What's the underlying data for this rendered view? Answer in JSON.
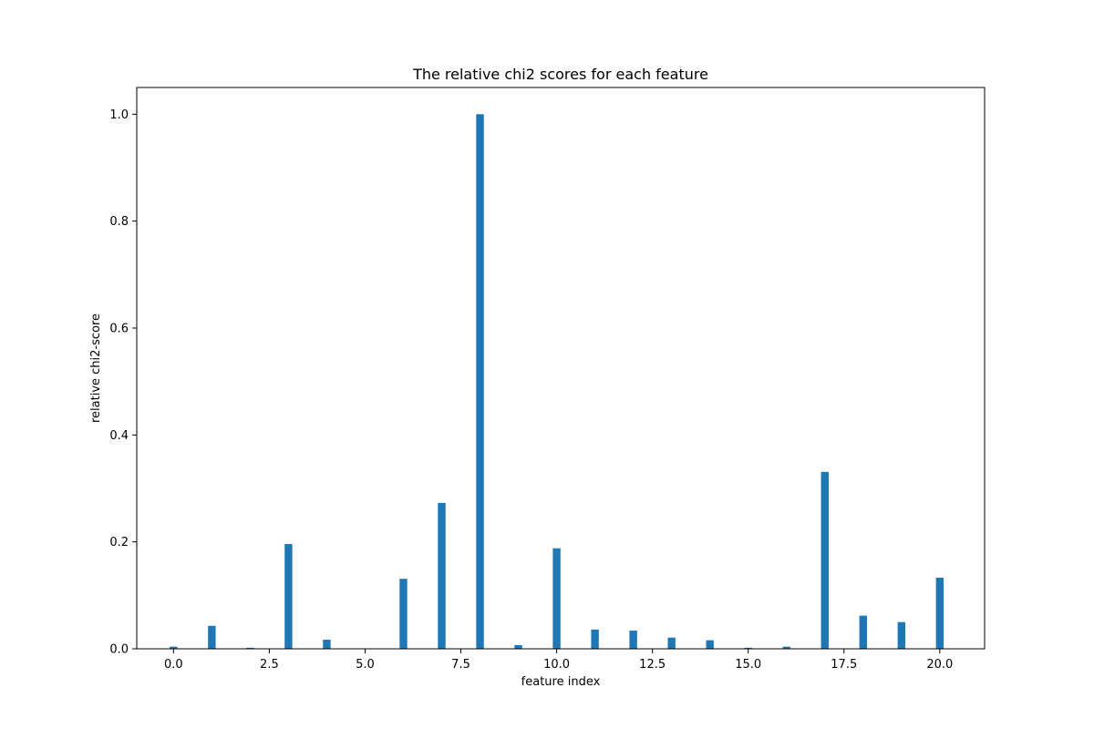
{
  "chart_data": {
    "type": "bar",
    "title": "The relative chi2 scores for each feature",
    "xlabel": "feature index",
    "ylabel": "relative chi2-score",
    "xlim": [
      -0.96,
      21.17
    ],
    "ylim": [
      0,
      1.05
    ],
    "xticks": [
      0.0,
      2.5,
      5.0,
      7.5,
      10.0,
      12.5,
      15.0,
      17.5,
      20.0
    ],
    "xtick_labels": [
      "0.0",
      "2.5",
      "5.0",
      "7.5",
      "10.0",
      "12.5",
      "15.0",
      "17.5",
      "20.0"
    ],
    "yticks": [
      0.0,
      0.2,
      0.4,
      0.6,
      0.8,
      1.0
    ],
    "ytick_labels": [
      "0.0",
      "0.2",
      "0.4",
      "0.6",
      "0.8",
      "1.0"
    ],
    "bar_color": "#1f77b4",
    "grid": false,
    "x": [
      0,
      1,
      2,
      3,
      4,
      5,
      6,
      7,
      8,
      9,
      10,
      11,
      12,
      13,
      14,
      15,
      16,
      17,
      18,
      19,
      20
    ],
    "values": [
      0.004,
      0.043,
      0.002,
      0.196,
      0.017,
      0.0,
      0.131,
      0.273,
      1.0,
      0.007,
      0.188,
      0.036,
      0.034,
      0.021,
      0.016,
      0.002,
      0.004,
      0.331,
      0.062,
      0.05,
      0.133
    ]
  }
}
